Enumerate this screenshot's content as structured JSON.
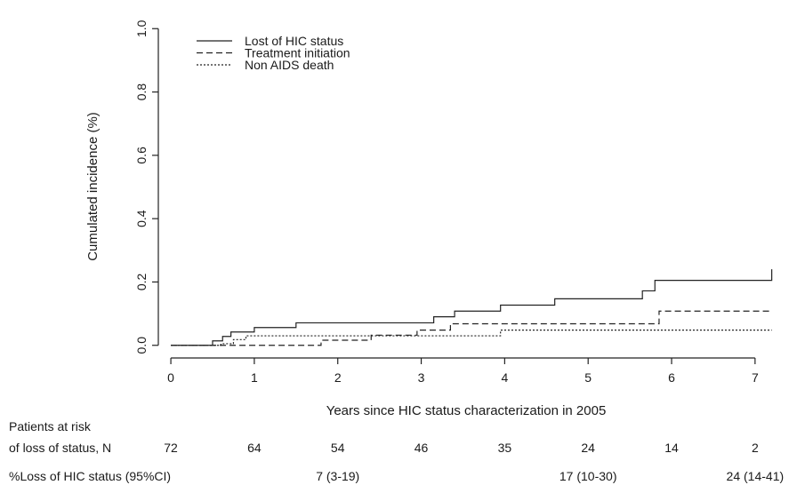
{
  "chart_data": {
    "type": "line",
    "title": "",
    "xlabel": "Years since HIC status characterization in 2005",
    "ylabel": "Cumulated incidence (%)",
    "xlim": [
      -0.15,
      7.3
    ],
    "ylim": [
      -0.04,
      1.04
    ],
    "x_ticks": [
      0,
      1,
      2,
      3,
      4,
      5,
      6,
      7
    ],
    "y_ticks": [
      0.0,
      0.2,
      0.4,
      0.6,
      0.8,
      1.0
    ],
    "y_tick_labels": [
      "0.0",
      "0.2",
      "0.4",
      "0.6",
      "0.8",
      "1.0"
    ],
    "grid": false,
    "legend_position": "top-left",
    "series": [
      {
        "name": "Lost of HIC status",
        "line_style": "solid",
        "x": [
          0,
          0.5,
          0.62,
          0.72,
          1.0,
          1.5,
          2.7,
          3.15,
          3.4,
          3.95,
          4.6,
          5.65,
          5.8,
          7.2
        ],
        "y": [
          0,
          0.014,
          0.028,
          0.042,
          0.056,
          0.071,
          0.071,
          0.09,
          0.108,
          0.127,
          0.147,
          0.172,
          0.205,
          0.24
        ]
      },
      {
        "name": "Treatment initiation",
        "line_style": "dashed",
        "x": [
          0,
          0.6,
          1.8,
          2.4,
          2.95,
          3.35,
          5.85,
          7.2
        ],
        "y": [
          0,
          0,
          0.016,
          0.032,
          0.048,
          0.068,
          0.108,
          0.108
        ]
      },
      {
        "name": "Non AIDS death",
        "line_style": "dotted",
        "x": [
          0,
          0.6,
          0.75,
          0.9,
          3.95,
          7.2
        ],
        "y": [
          0,
          0.005,
          0.018,
          0.03,
          0.048,
          0.048
        ]
      }
    ]
  },
  "table": {
    "risk_label_line1": "Patients at risk",
    "risk_label_line2": "of loss of status, N",
    "at_risk": [
      {
        "x": 0,
        "n": "72"
      },
      {
        "x": 1,
        "n": "64"
      },
      {
        "x": 2,
        "n": "54"
      },
      {
        "x": 3,
        "n": "46"
      },
      {
        "x": 4,
        "n": "35"
      },
      {
        "x": 5,
        "n": "24"
      },
      {
        "x": 6,
        "n": "14"
      },
      {
        "x": 7,
        "n": "2"
      }
    ],
    "pct_label": "%Loss of HIC status  (95%CI)",
    "pct_loss": [
      {
        "x": 2,
        "v": "7 (3-19)"
      },
      {
        "x": 5,
        "v": "17 (10-30)"
      },
      {
        "x": 7,
        "v": "24 (14-41)"
      }
    ]
  }
}
